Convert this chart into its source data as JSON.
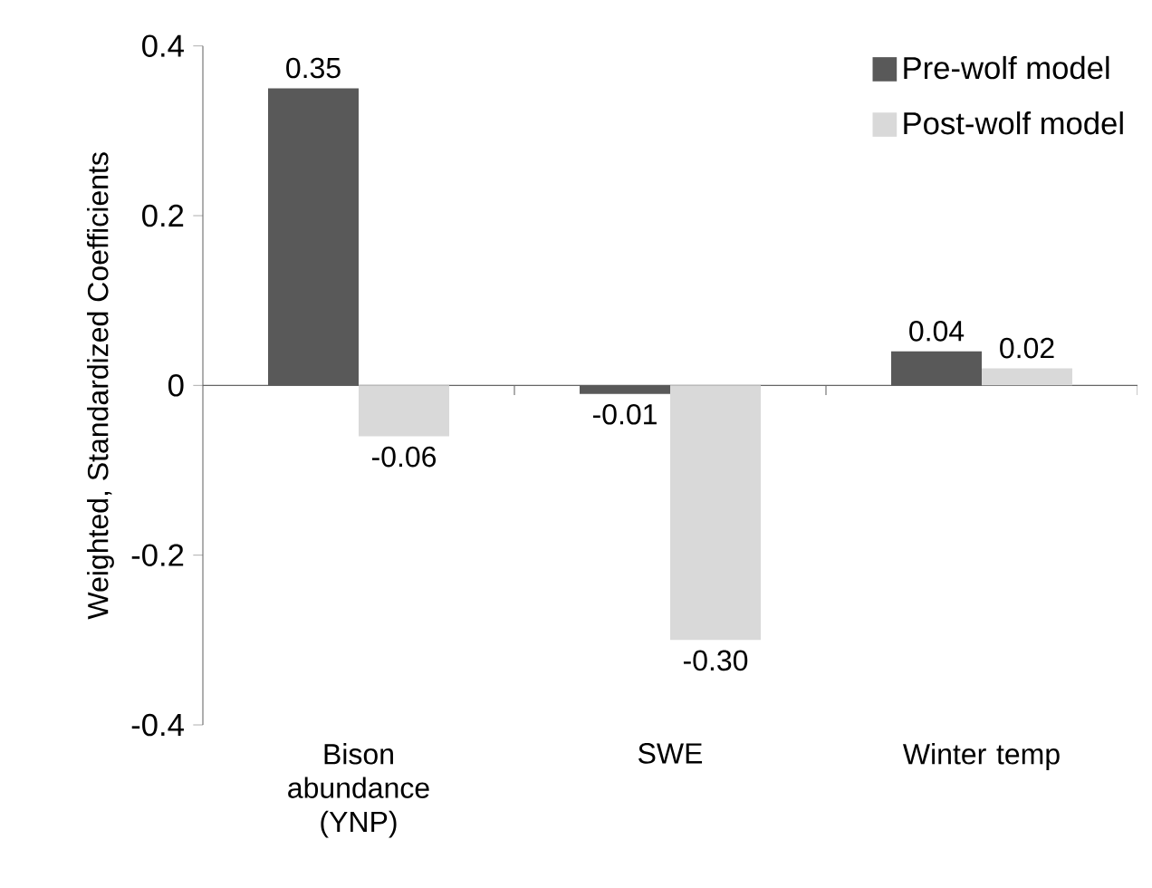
{
  "chart_data": {
    "type": "bar",
    "ylabel": "Weighted, Standardized Coefficients",
    "categories": [
      "Bison abundance (YNP)",
      "SWE",
      "Winter temp"
    ],
    "series": [
      {
        "name": "Pre-wolf model",
        "color": "#595959",
        "values": [
          0.35,
          -0.01,
          0.04
        ],
        "value_labels": [
          "0.35",
          "-0.01",
          "0.04"
        ]
      },
      {
        "name": "Post-wolf model",
        "color": "#d9d9d9",
        "values": [
          -0.06,
          -0.3,
          0.02
        ],
        "value_labels": [
          "-0.06",
          "-0.30",
          "0.02"
        ]
      }
    ],
    "ylim": [
      -0.4,
      0.4
    ],
    "yticks": [
      -0.4,
      -0.2,
      0,
      0.2,
      0.4
    ],
    "legend": "top right"
  }
}
